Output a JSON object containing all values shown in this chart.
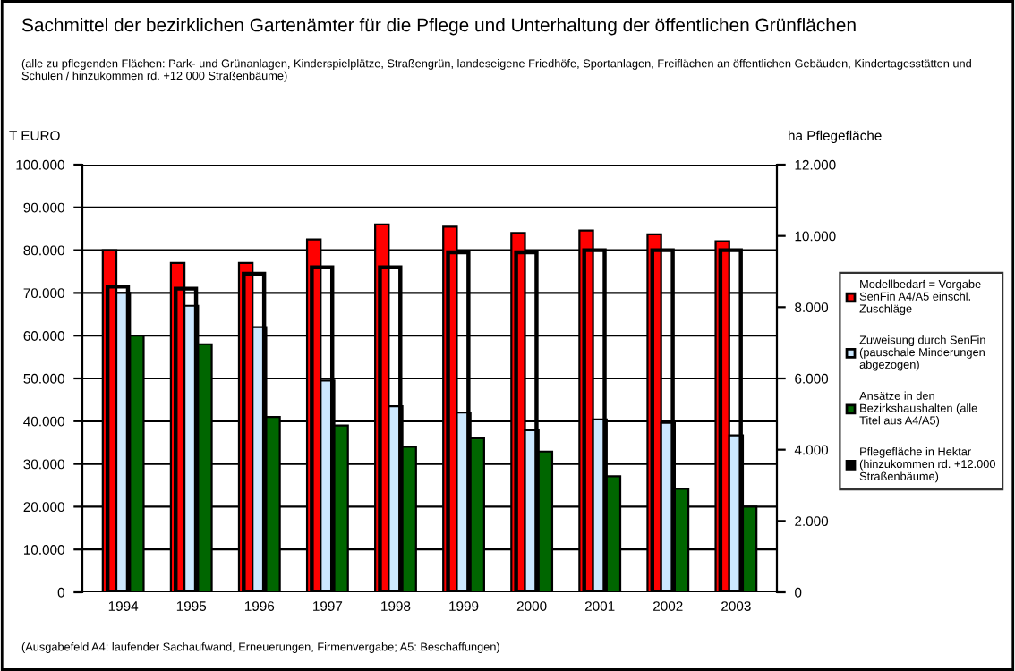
{
  "chart_data": {
    "type": "bar",
    "title": "Sachmittel der bezirklichen Gartenämter für die Pflege und Unterhaltung der öffentlichen Grünflächen",
    "subtitle": "(alle zu pflegenden Flächen: Park- und Grünanlagen, Kinderspielplätze, Straßengrün, landeseigene Friedhöfe, Sportanlagen, Freiflächen an öffentlichen Gebäuden, Kindertagesstätten und Schulen / hinzukommen rd. +12 000 Straßenbäume)",
    "ylabel": "T EURO",
    "y2label": "ha Pflegefläche",
    "annotations": [
      "(Ausgabefeld A4: laufender Sachaufwand, Erneuerungen, Firmenvergabe; A5: Beschaffungen)"
    ],
    "categories": [
      "1994",
      "1995",
      "1996",
      "1997",
      "1998",
      "1999",
      "2000",
      "2001",
      "2002",
      "2003"
    ],
    "series": [
      {
        "name": "Modellbedarf = Vorgabe SenFin A4/A5 einschl. Zuschläge",
        "color": "#ff0000",
        "values": [
          80000,
          77000,
          77000,
          82500,
          86000,
          85500,
          84000,
          84600,
          83700,
          82100
        ]
      },
      {
        "name": "Zuweisung durch SenFin (pauschale Minderungen abgezogen)",
        "color": "#cce8ff",
        "values": [
          70000,
          67000,
          62000,
          49500,
          43500,
          42000,
          37900,
          40400,
          39600,
          36700
        ]
      },
      {
        "name": "Ansätze in den Bezirkshaushalten (alle Titel aus A4/A5)",
        "color": "#006600",
        "values": [
          60000,
          58000,
          41000,
          39000,
          34000,
          36000,
          32900,
          27100,
          24200,
          20000
        ]
      },
      {
        "name": "Pflegefläche in Hektar (hinzukommen rd. +12.000 Straßenbäume)",
        "color": "#000000",
        "axis": "y2",
        "values": [
          8580,
          8520,
          8940,
          9120,
          9120,
          9540,
          9540,
          9600,
          9600,
          9600
        ]
      }
    ],
    "ylim": [
      0,
      100000
    ],
    "yticks": [
      0,
      {
        "value": 10000,
        "label": "10.000"
      },
      {
        "value": 20000,
        "label": "20.000"
      },
      {
        "value": 30000,
        "label": "30.000"
      },
      {
        "value": 40000,
        "label": "40.000"
      },
      {
        "value": 50000,
        "label": "50.000"
      },
      {
        "value": 60000,
        "label": "60.000"
      },
      {
        "value": 70000,
        "label": "70.000"
      },
      {
        "value": 80000,
        "label": "80.000"
      },
      {
        "value": 90000,
        "label": "90.000"
      },
      {
        "value": 100000,
        "label": "100.000"
      }
    ],
    "y2lim": [
      0,
      12000
    ],
    "y2ticks": [
      0,
      {
        "value": 2000,
        "label": "2.000"
      },
      {
        "value": 4000,
        "label": "4.000"
      },
      {
        "value": 6000,
        "label": "6.000"
      },
      {
        "value": 8000,
        "label": "8.000"
      },
      {
        "value": 10000,
        "label": "10.000"
      },
      {
        "value": 12000,
        "label": "12.000"
      }
    ],
    "grid": "y",
    "legend": "right"
  }
}
